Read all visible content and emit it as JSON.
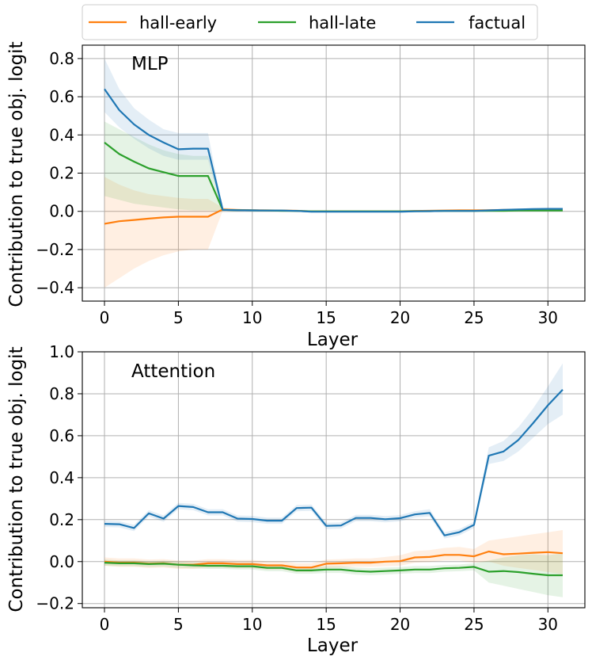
{
  "legend": {
    "entries": [
      {
        "label": "hall-early",
        "color": "#ff7f0e"
      },
      {
        "label": "hall-late",
        "color": "#2ca02c"
      },
      {
        "label": "factual",
        "color": "#1f77b4"
      }
    ]
  },
  "chart_data": [
    {
      "type": "line",
      "title": "MLP",
      "xlabel": "Layer",
      "ylabel": "Contribution to true obj. logit",
      "xlim": [
        -1.5,
        32.5
      ],
      "ylim": [
        -0.47,
        0.87
      ],
      "xticks": [
        0,
        5,
        10,
        15,
        20,
        25,
        30
      ],
      "yticks": [
        -0.4,
        -0.2,
        0.0,
        0.2,
        0.4,
        0.6,
        0.8
      ],
      "ytick_labels": [
        "−0.4",
        "−0.2",
        "0.0",
        "0.2",
        "0.4",
        "0.6",
        "0.8"
      ],
      "grid": true,
      "x": [
        0,
        1,
        2,
        3,
        4,
        5,
        6,
        7,
        8,
        9,
        10,
        11,
        12,
        13,
        14,
        15,
        16,
        17,
        18,
        19,
        20,
        21,
        22,
        23,
        24,
        25,
        26,
        27,
        28,
        29,
        30,
        31
      ],
      "series": [
        {
          "name": "hall-early",
          "color": "#ff7f0e",
          "values": [
            -0.065,
            -0.052,
            -0.045,
            -0.038,
            -0.032,
            -0.028,
            -0.028,
            -0.028,
            0.01,
            0.007,
            0.006,
            0.005,
            0.004,
            0.003,
            0.0,
            0.0,
            0.0,
            0.0,
            0.0,
            0.0,
            0.0,
            0.002,
            0.003,
            0.004,
            0.005,
            0.005,
            0.006,
            0.007,
            0.008,
            0.009,
            0.01,
            0.01
          ],
          "lower": [
            -0.4,
            -0.35,
            -0.3,
            -0.26,
            -0.23,
            -0.21,
            -0.2,
            -0.2,
            0.003,
            0.002,
            0.001,
            0.001,
            0.0,
            0.0,
            -0.004,
            -0.004,
            -0.004,
            -0.004,
            -0.004,
            -0.004,
            -0.004,
            -0.002,
            -0.001,
            0.0,
            0.0,
            0.0,
            0.001,
            0.002,
            0.003,
            0.004,
            0.005,
            0.005
          ],
          "upper": [
            0.18,
            0.14,
            0.11,
            0.09,
            0.08,
            0.07,
            0.065,
            0.065,
            0.02,
            0.013,
            0.011,
            0.01,
            0.009,
            0.007,
            0.004,
            0.004,
            0.004,
            0.004,
            0.004,
            0.004,
            0.004,
            0.006,
            0.007,
            0.009,
            0.01,
            0.01,
            0.012,
            0.013,
            0.014,
            0.015,
            0.016,
            0.016
          ]
        },
        {
          "name": "hall-late",
          "color": "#2ca02c",
          "values": [
            0.36,
            0.3,
            0.26,
            0.225,
            0.205,
            0.185,
            0.185,
            0.185,
            0.008,
            0.006,
            0.005,
            0.004,
            0.003,
            0.002,
            0.0,
            0.0,
            0.0,
            0.0,
            0.0,
            0.0,
            0.0,
            0.001,
            0.001,
            0.002,
            0.002,
            0.002,
            0.003,
            0.003,
            0.004,
            0.004,
            0.004,
            0.004
          ],
          "lower": [
            0.08,
            0.06,
            0.04,
            0.03,
            0.02,
            0.01,
            0.005,
            0.005,
            0.002,
            0.001,
            0.0,
            0.0,
            -0.001,
            -0.002,
            -0.004,
            -0.004,
            -0.004,
            -0.004,
            -0.004,
            -0.004,
            -0.004,
            -0.003,
            -0.003,
            -0.002,
            -0.002,
            -0.002,
            -0.002,
            -0.002,
            -0.001,
            -0.001,
            -0.001,
            -0.001
          ],
          "upper": [
            0.47,
            0.43,
            0.39,
            0.35,
            0.32,
            0.3,
            0.29,
            0.29,
            0.014,
            0.011,
            0.01,
            0.009,
            0.008,
            0.007,
            0.004,
            0.004,
            0.004,
            0.004,
            0.004,
            0.004,
            0.004,
            0.005,
            0.006,
            0.006,
            0.007,
            0.007,
            0.008,
            0.008,
            0.009,
            0.009,
            0.01,
            0.01
          ]
        },
        {
          "name": "factual",
          "color": "#1f77b4",
          "values": [
            0.64,
            0.53,
            0.455,
            0.4,
            0.36,
            0.325,
            0.328,
            0.328,
            0.008,
            0.006,
            0.005,
            0.004,
            0.004,
            0.002,
            -0.002,
            -0.002,
            -0.002,
            -0.002,
            -0.002,
            -0.002,
            -0.002,
            0.0,
            0.001,
            0.002,
            0.002,
            0.002,
            0.005,
            0.008,
            0.01,
            0.012,
            0.013,
            0.013
          ],
          "lower": [
            0.52,
            0.44,
            0.38,
            0.33,
            0.29,
            0.27,
            0.27,
            0.27,
            0.003,
            0.002,
            0.001,
            0.0,
            0.0,
            -0.002,
            -0.006,
            -0.006,
            -0.006,
            -0.006,
            -0.006,
            -0.006,
            -0.006,
            -0.004,
            -0.003,
            -0.002,
            -0.002,
            -0.002,
            0.0,
            0.003,
            0.005,
            0.007,
            0.008,
            0.008
          ],
          "upper": [
            0.8,
            0.64,
            0.54,
            0.48,
            0.43,
            0.41,
            0.41,
            0.41,
            0.013,
            0.01,
            0.009,
            0.008,
            0.008,
            0.006,
            0.002,
            0.002,
            0.002,
            0.002,
            0.002,
            0.002,
            0.002,
            0.004,
            0.005,
            0.006,
            0.006,
            0.006,
            0.01,
            0.013,
            0.015,
            0.017,
            0.018,
            0.018
          ]
        }
      ]
    },
    {
      "type": "line",
      "title": "Attention",
      "xlabel": "Layer",
      "ylabel": "Contribution to true obj. logit",
      "xlim": [
        -1.5,
        32.5
      ],
      "ylim": [
        -0.22,
        1.0
      ],
      "xticks": [
        0,
        5,
        10,
        15,
        20,
        25,
        30
      ],
      "yticks": [
        -0.2,
        0.0,
        0.2,
        0.4,
        0.6,
        0.8,
        1.0
      ],
      "ytick_labels": [
        "−0.2",
        "0.0",
        "0.2",
        "0.4",
        "0.6",
        "0.8",
        "1.0"
      ],
      "grid": true,
      "x": [
        0,
        1,
        2,
        3,
        4,
        5,
        6,
        7,
        8,
        9,
        10,
        11,
        12,
        13,
        14,
        15,
        16,
        17,
        18,
        19,
        20,
        21,
        22,
        23,
        24,
        25,
        26,
        27,
        28,
        29,
        30,
        31
      ],
      "series": [
        {
          "name": "hall-early",
          "color": "#ff7f0e",
          "values": [
            0.0,
            -0.005,
            -0.005,
            -0.01,
            -0.008,
            -0.015,
            -0.015,
            -0.008,
            -0.008,
            -0.012,
            -0.012,
            -0.018,
            -0.018,
            -0.028,
            -0.028,
            -0.01,
            -0.008,
            -0.005,
            -0.005,
            0.0,
            0.002,
            0.02,
            0.022,
            0.032,
            0.032,
            0.025,
            0.048,
            0.035,
            0.038,
            0.042,
            0.045,
            0.04
          ],
          "lower": [
            -0.02,
            -0.025,
            -0.025,
            -0.03,
            -0.028,
            -0.035,
            -0.035,
            -0.028,
            -0.028,
            -0.032,
            -0.032,
            -0.038,
            -0.038,
            -0.048,
            -0.048,
            -0.03,
            -0.028,
            -0.025,
            -0.025,
            -0.022,
            -0.02,
            -0.005,
            -0.002,
            0.005,
            0.005,
            -0.005,
            0.0,
            -0.02,
            -0.03,
            -0.04,
            -0.05,
            -0.06
          ],
          "upper": [
            0.02,
            0.015,
            0.015,
            0.01,
            0.012,
            0.005,
            0.005,
            0.012,
            0.012,
            0.008,
            0.008,
            0.002,
            0.002,
            -0.008,
            -0.008,
            0.01,
            0.012,
            0.015,
            0.015,
            0.022,
            0.03,
            0.05,
            0.055,
            0.065,
            0.07,
            0.06,
            0.1,
            0.11,
            0.12,
            0.13,
            0.14,
            0.15
          ]
        },
        {
          "name": "hall-late",
          "color": "#2ca02c",
          "values": [
            -0.005,
            -0.008,
            -0.008,
            -0.012,
            -0.01,
            -0.015,
            -0.018,
            -0.02,
            -0.02,
            -0.022,
            -0.022,
            -0.03,
            -0.03,
            -0.042,
            -0.042,
            -0.038,
            -0.038,
            -0.045,
            -0.048,
            -0.045,
            -0.042,
            -0.038,
            -0.038,
            -0.032,
            -0.03,
            -0.025,
            -0.048,
            -0.045,
            -0.05,
            -0.058,
            -0.065,
            -0.065
          ],
          "lower": [
            -0.02,
            -0.022,
            -0.022,
            -0.026,
            -0.024,
            -0.03,
            -0.032,
            -0.035,
            -0.035,
            -0.038,
            -0.038,
            -0.046,
            -0.046,
            -0.058,
            -0.058,
            -0.054,
            -0.054,
            -0.062,
            -0.065,
            -0.062,
            -0.058,
            -0.055,
            -0.055,
            -0.048,
            -0.046,
            -0.042,
            -0.1,
            -0.115,
            -0.13,
            -0.145,
            -0.16,
            -0.17
          ],
          "upper": [
            0.01,
            0.006,
            0.006,
            0.002,
            0.004,
            0.0,
            -0.004,
            -0.005,
            -0.005,
            -0.006,
            -0.006,
            -0.014,
            -0.014,
            -0.026,
            -0.026,
            -0.022,
            -0.022,
            -0.028,
            -0.031,
            -0.028,
            -0.026,
            -0.021,
            -0.021,
            -0.016,
            -0.014,
            -0.008,
            0.005,
            0.02,
            0.03,
            0.035,
            0.03,
            0.04
          ]
        },
        {
          "name": "factual",
          "color": "#1f77b4",
          "values": [
            0.18,
            0.178,
            0.16,
            0.23,
            0.205,
            0.265,
            0.26,
            0.235,
            0.235,
            0.205,
            0.203,
            0.195,
            0.195,
            0.255,
            0.257,
            0.17,
            0.172,
            0.208,
            0.208,
            0.202,
            0.207,
            0.225,
            0.232,
            0.125,
            0.14,
            0.175,
            0.505,
            0.525,
            0.58,
            0.66,
            0.745,
            0.82
          ],
          "lower": [
            0.165,
            0.163,
            0.145,
            0.215,
            0.19,
            0.25,
            0.245,
            0.22,
            0.22,
            0.19,
            0.188,
            0.18,
            0.18,
            0.24,
            0.242,
            0.155,
            0.157,
            0.193,
            0.193,
            0.187,
            0.192,
            0.21,
            0.215,
            0.11,
            0.125,
            0.16,
            0.465,
            0.48,
            0.525,
            0.59,
            0.655,
            0.7
          ],
          "upper": [
            0.195,
            0.193,
            0.175,
            0.245,
            0.22,
            0.28,
            0.275,
            0.25,
            0.25,
            0.22,
            0.218,
            0.21,
            0.21,
            0.27,
            0.272,
            0.185,
            0.187,
            0.223,
            0.223,
            0.217,
            0.222,
            0.24,
            0.25,
            0.14,
            0.155,
            0.19,
            0.545,
            0.575,
            0.64,
            0.73,
            0.835,
            0.945
          ]
        }
      ]
    }
  ]
}
